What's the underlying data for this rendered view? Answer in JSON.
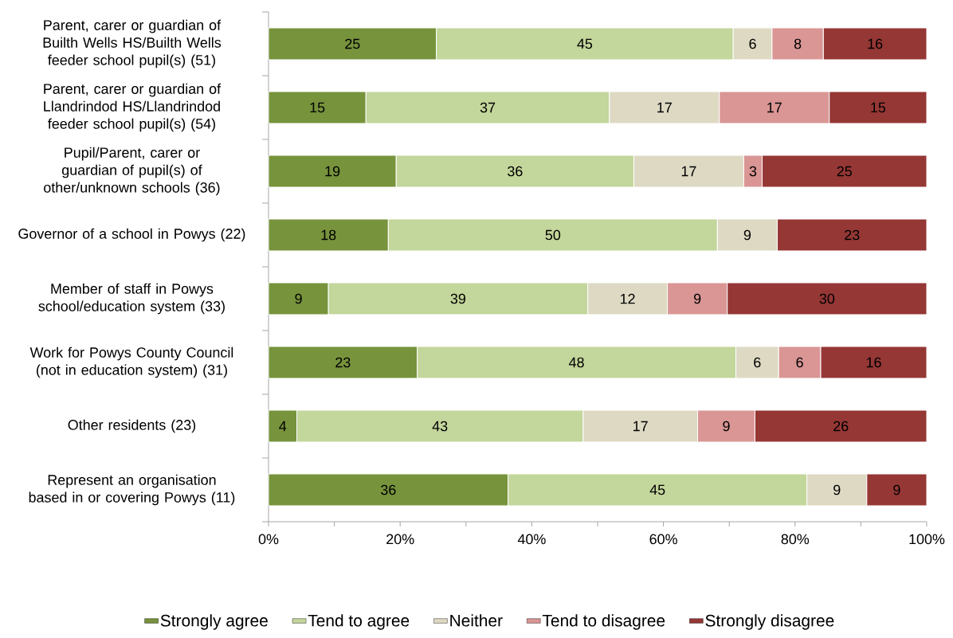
{
  "chart_data": {
    "type": "bar",
    "orientation": "horizontal",
    "stacked": true,
    "categories": [
      "Parent, carer or guardian of Builth Wells HS/Builth Wells feeder school pupil(s) (51)",
      "Parent, carer or guardian of Llandrindod HS/Llandrindod feeder school pupil(s) (54)",
      "Pupil/Parent, carer or guardian of pupil(s) of other/unknown schools (36)",
      "Governor of a school in Powys (22)",
      "Member of staff in Powys school/education system (33)",
      "Work for Powys County Council (not in education system) (31)",
      "Other residents (23)",
      "Represent an organisation based in or covering Powys (11)"
    ],
    "series": [
      {
        "name": "Strongly agree",
        "color": "#77933c",
        "values": [
          25.5,
          14.8,
          19.4,
          18.2,
          9.1,
          22.6,
          4.3,
          36.4
        ],
        "value_labels": [
          "25",
          "15",
          "19",
          "18",
          "9",
          "23",
          "4",
          "36"
        ]
      },
      {
        "name": "Tend to agree",
        "color": "#c3d69b",
        "values": [
          45.1,
          37.0,
          36.1,
          50.0,
          39.4,
          48.4,
          43.5,
          45.4
        ],
        "value_labels": [
          "45",
          "37",
          "36",
          "50",
          "39",
          "48",
          "43",
          "45"
        ]
      },
      {
        "name": "Neither",
        "color": "#ddd9c3",
        "values": [
          5.9,
          16.7,
          16.7,
          9.1,
          12.1,
          6.5,
          17.4,
          9.1
        ],
        "value_labels": [
          "6",
          "17",
          "17",
          "9",
          "12",
          "6",
          "17",
          "9"
        ]
      },
      {
        "name": "Tend to disagree",
        "color": "#d99694",
        "values": [
          7.8,
          16.7,
          2.8,
          null,
          9.1,
          6.4,
          8.7,
          null
        ],
        "value_labels": [
          "8",
          "17",
          "3",
          null,
          "9",
          "6",
          "9",
          null
        ]
      },
      {
        "name": "Strongly disagree",
        "color": "#953735",
        "values": [
          15.7,
          14.8,
          25.0,
          22.7,
          30.3,
          16.1,
          26.1,
          9.1
        ],
        "value_labels": [
          "16",
          "15",
          "25",
          "23",
          "30",
          "16",
          "26",
          "9"
        ]
      }
    ],
    "xlim": [
      0,
      100
    ],
    "xticks": [
      {
        "value": 0,
        "label": "0%"
      },
      {
        "value": 10,
        "label": null
      },
      {
        "value": 20,
        "label": "20%"
      },
      {
        "value": 30,
        "label": null
      },
      {
        "value": 40,
        "label": "40%"
      },
      {
        "value": 50,
        "label": null
      },
      {
        "value": 60,
        "label": "60%"
      },
      {
        "value": 70,
        "label": null
      },
      {
        "value": 80,
        "label": "80%"
      },
      {
        "value": 90,
        "label": null
      },
      {
        "value": 100,
        "label": "100%"
      }
    ],
    "legend": "bottom",
    "grid": false
  }
}
